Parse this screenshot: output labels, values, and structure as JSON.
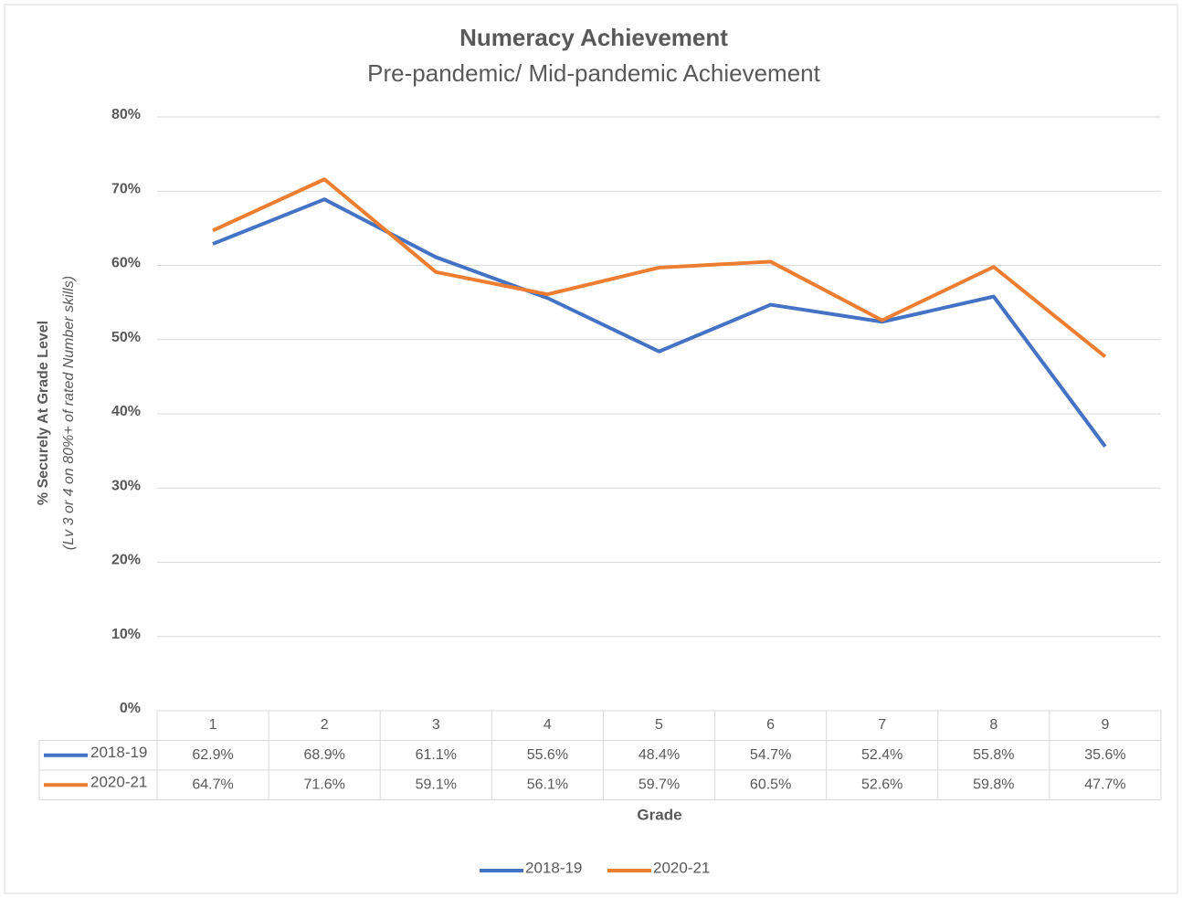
{
  "chart_data": {
    "type": "line",
    "title": "Numeracy Achievement",
    "subtitle": "Pre-pandemic/ Mid-pandemic Achievement",
    "y_label": "% Securely At Grade Level",
    "y_label_note": "(Lv 3 or 4 on 80%+ of rated Number skills)",
    "x_label": "Grade",
    "categories": [
      "1",
      "2",
      "3",
      "4",
      "5",
      "6",
      "7",
      "8",
      "9"
    ],
    "series": [
      {
        "name": "2018-19",
        "color": "#4472c4",
        "values": [
          62.9,
          68.9,
          61.1,
          55.6,
          48.4,
          54.7,
          52.4,
          55.8,
          35.6
        ],
        "value_labels": [
          "62.9%",
          "68.9%",
          "61.1%",
          "55.6%",
          "48.4%",
          "54.7%",
          "52.4%",
          "55.8%",
          "35.6%"
        ]
      },
      {
        "name": "2020-21",
        "color": "#ed7d31",
        "values": [
          64.7,
          71.6,
          59.1,
          56.1,
          59.7,
          60.5,
          52.6,
          59.8,
          47.7
        ],
        "value_labels": [
          "64.7%",
          "71.6%",
          "59.1%",
          "56.1%",
          "59.7%",
          "60.5%",
          "52.6%",
          "59.8%",
          "47.7%"
        ]
      }
    ],
    "ylim": [
      0,
      80
    ],
    "yticks": [
      {
        "value": 0,
        "label": "0%"
      },
      {
        "value": 10,
        "label": "10%"
      },
      {
        "value": 20,
        "label": "20%"
      },
      {
        "value": 30,
        "label": "30%"
      },
      {
        "value": 40,
        "label": "40%"
      },
      {
        "value": 50,
        "label": "50%"
      },
      {
        "value": 60,
        "label": "60%"
      },
      {
        "value": 70,
        "label": "70%"
      },
      {
        "value": 80,
        "label": "80%"
      }
    ],
    "grid": true,
    "legend": "bottom"
  }
}
